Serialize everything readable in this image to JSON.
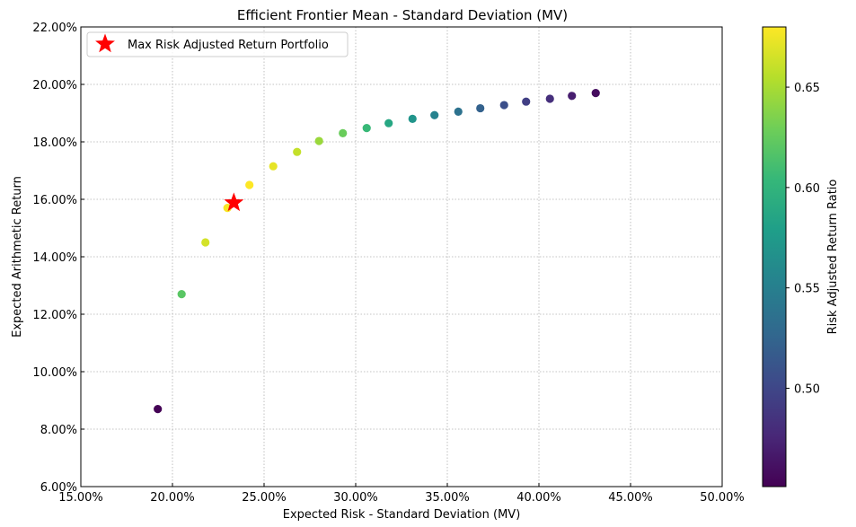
{
  "chart_data": {
    "type": "scatter",
    "title": "Efficient Frontier Mean - Standard Deviation (MV)",
    "xlabel": "Expected Risk - Standard Deviation (MV)",
    "ylabel": "Expected Arithmetic Return",
    "xlim": [
      0.15,
      0.5
    ],
    "ylim": [
      0.06,
      0.22
    ],
    "x_ticks": [
      0.15,
      0.2,
      0.25,
      0.3,
      0.35,
      0.4,
      0.45,
      0.5
    ],
    "x_tick_labels": [
      "15.00%",
      "20.00%",
      "25.00%",
      "30.00%",
      "35.00%",
      "40.00%",
      "45.00%",
      "50.00%"
    ],
    "y_ticks": [
      0.06,
      0.08,
      0.1,
      0.12,
      0.14,
      0.16,
      0.18,
      0.2,
      0.22
    ],
    "y_tick_labels": [
      "6.00%",
      "8.00%",
      "10.00%",
      "12.00%",
      "14.00%",
      "16.00%",
      "18.00%",
      "20.00%",
      "22.00%"
    ],
    "grid": true,
    "colormap": "viridis",
    "colorbar": {
      "label": "Risk Adjusted Return Ratio",
      "range": [
        0.451,
        0.68
      ],
      "ticks": [
        0.5,
        0.55,
        0.6,
        0.65
      ],
      "tick_labels": [
        "0.50",
        "0.55",
        "0.60",
        "0.65"
      ]
    },
    "points": [
      {
        "x": 0.192,
        "y": 0.087,
        "c": 0.452
      },
      {
        "x": 0.205,
        "y": 0.127,
        "c": 0.62
      },
      {
        "x": 0.218,
        "y": 0.145,
        "c": 0.665
      },
      {
        "x": 0.23,
        "y": 0.157,
        "c": 0.678
      },
      {
        "x": 0.242,
        "y": 0.165,
        "c": 0.68
      },
      {
        "x": 0.255,
        "y": 0.1715,
        "c": 0.672
      },
      {
        "x": 0.268,
        "y": 0.1765,
        "c": 0.66
      },
      {
        "x": 0.28,
        "y": 0.1803,
        "c": 0.645
      },
      {
        "x": 0.293,
        "y": 0.183,
        "c": 0.627
      },
      {
        "x": 0.306,
        "y": 0.1848,
        "c": 0.605
      },
      {
        "x": 0.318,
        "y": 0.1865,
        "c": 0.587
      },
      {
        "x": 0.331,
        "y": 0.188,
        "c": 0.57
      },
      {
        "x": 0.343,
        "y": 0.1893,
        "c": 0.553
      },
      {
        "x": 0.356,
        "y": 0.1905,
        "c": 0.537
      },
      {
        "x": 0.368,
        "y": 0.1917,
        "c": 0.522
      },
      {
        "x": 0.381,
        "y": 0.1928,
        "c": 0.507
      },
      {
        "x": 0.393,
        "y": 0.194,
        "c": 0.494
      },
      {
        "x": 0.406,
        "y": 0.195,
        "c": 0.482
      },
      {
        "x": 0.418,
        "y": 0.196,
        "c": 0.47
      },
      {
        "x": 0.431,
        "y": 0.197,
        "c": 0.458
      }
    ],
    "highlight": {
      "name": "Max Risk Adjusted Return Portfolio",
      "x": 0.2335,
      "y": 0.1588,
      "marker": "star",
      "color": "#ff0000"
    },
    "legend_position": "upper left"
  }
}
